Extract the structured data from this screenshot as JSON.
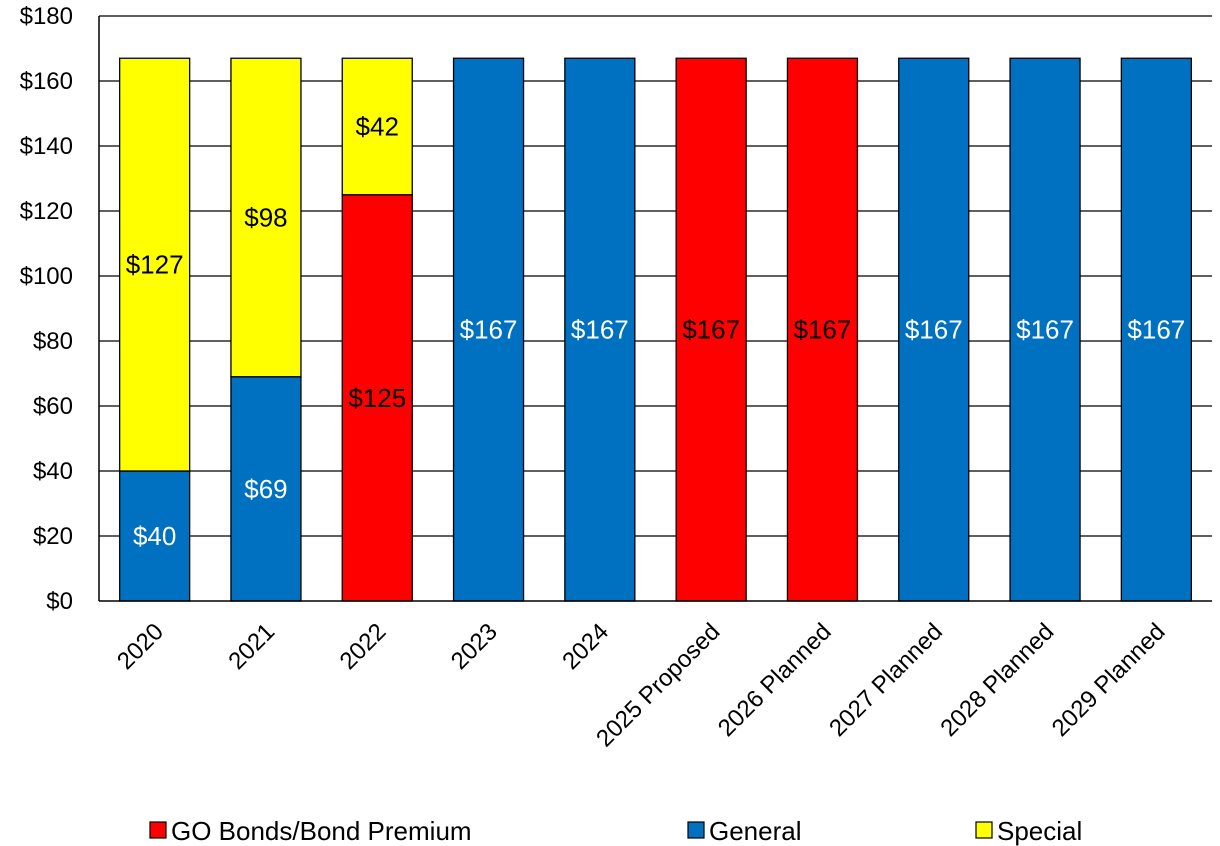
{
  "chart_data": {
    "type": "bar",
    "stacked": true,
    "categories": [
      "2020",
      "2021",
      "2022",
      "2023",
      "2024",
      "2025 Proposed",
      "2026 Planned",
      "2027 Planned",
      "2028 Planned",
      "2029 Planned"
    ],
    "series": [
      {
        "name": "GO Bonds/Bond Premium",
        "color": "#ff0000",
        "label_color": "#000000",
        "values": [
          0,
          0,
          125,
          0,
          0,
          167,
          167,
          0,
          0,
          0
        ]
      },
      {
        "name": "General",
        "color": "#0070c0",
        "label_color": "#ffffff",
        "values": [
          40,
          69,
          0,
          167,
          167,
          0,
          0,
          167,
          167,
          167
        ]
      },
      {
        "name": "Special",
        "color": "#ffff00",
        "label_color": "#000000",
        "values": [
          127,
          98,
          42,
          0,
          0,
          0,
          0,
          0,
          0,
          0
        ]
      }
    ],
    "stack_order": [
      "General",
      "GO Bonds/Bond Premium",
      "Special"
    ],
    "y_ticks": [
      "$0",
      "$20",
      "$40",
      "$60",
      "$80",
      "$100",
      "$120",
      "$140",
      "$160",
      "$180"
    ],
    "ylim": [
      0,
      180
    ],
    "grid": true,
    "legend_position": "bottom"
  }
}
